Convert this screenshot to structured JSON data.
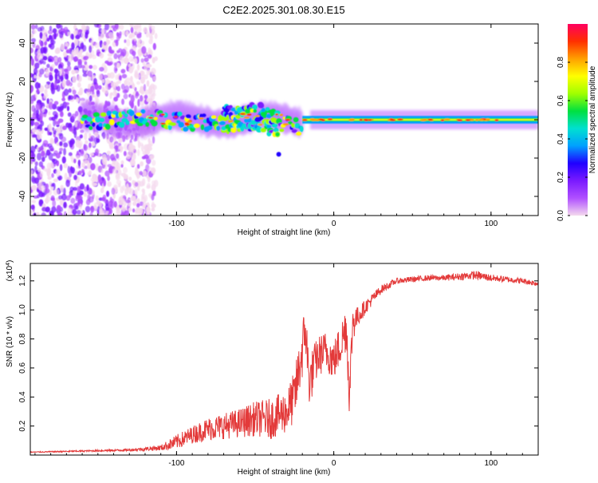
{
  "title": "C2E2.2025.301.08.30.E15",
  "chart_data": [
    {
      "type": "heatmap",
      "title": "C2E2.2025.301.08.30.E15",
      "xlabel": "Height of straight line (km)",
      "ylabel": "Frequency (Hz)",
      "xlim": [
        -193,
        130
      ],
      "ylim": [
        -50,
        50
      ],
      "xticks": [
        -100,
        0,
        100
      ],
      "xtick_labels": [
        "-100",
        "0",
        "100"
      ],
      "yticks": [
        -40,
        -20,
        0,
        20,
        40
      ],
      "ytick_labels": [
        "-40",
        "-20",
        "0",
        "20",
        "40"
      ],
      "colorbar": {
        "label": "Normalized spectral amplitude",
        "range": [
          0,
          1
        ],
        "ticks": [
          0.0,
          0.2,
          0.4,
          0.6,
          0.8
        ],
        "tick_labels": [
          "0.0",
          "0.2",
          "0.4",
          "0.6",
          "0.8"
        ],
        "colormap": [
          "#f4d9ee",
          "#b050ff",
          "#7a1aff",
          "#2000ff",
          "#00a0ff",
          "#00e0d0",
          "#00e040",
          "#a0ff00",
          "#ffff00",
          "#ffa000",
          "#ff3000",
          "#ff0060"
        ]
      },
      "segments": [
        {
          "x_range": [
            -193,
            -113
          ],
          "description": "broadband scattered noise, amplitude < 0.25"
        },
        {
          "x_range": [
            -160,
            -20
          ],
          "center_hz": 0,
          "spread_hz": 8,
          "peak_amplitude": 0.95
        },
        {
          "x_range": [
            -20,
            130
          ],
          "center_hz": 0,
          "spread_hz": 2,
          "peak_amplitude": 0.95
        }
      ]
    },
    {
      "type": "line",
      "xlabel": "Height of straight line (km)",
      "ylabel": "SNR (10 * v/v)",
      "scale_label": "(x10",
      "scale_exponent": "4",
      "xlim": [
        -193,
        130
      ],
      "ylim": [
        0,
        1.32
      ],
      "xticks": [
        -100,
        0,
        100
      ],
      "xtick_labels": [
        "-100",
        "0",
        "100"
      ],
      "yticks": [
        0.2,
        0.4,
        0.6,
        0.8,
        1.0,
        1.2
      ],
      "ytick_labels": [
        "0.2",
        "0.4",
        "0.6",
        "0.8",
        "1.0",
        "1.2"
      ],
      "color": "#e33a3a",
      "series": [
        {
          "name": "SNR",
          "x": [
            -193,
            -170,
            -150,
            -130,
            -110,
            -100,
            -90,
            -80,
            -70,
            -60,
            -50,
            -40,
            -30,
            -25,
            -20,
            -18,
            -16,
            -15,
            -13,
            -10,
            -5,
            0,
            5,
            8,
            10,
            12,
            15,
            20,
            25,
            30,
            40,
            50,
            60,
            70,
            80,
            90,
            100,
            110,
            120,
            130
          ],
          "values": [
            0.02,
            0.025,
            0.03,
            0.035,
            0.05,
            0.09,
            0.14,
            0.18,
            0.2,
            0.22,
            0.25,
            0.25,
            0.3,
            0.4,
            0.72,
            0.88,
            0.55,
            0.5,
            0.6,
            0.68,
            0.72,
            0.65,
            0.78,
            0.9,
            0.4,
            0.92,
            0.95,
            1.02,
            1.08,
            1.14,
            1.2,
            1.21,
            1.22,
            1.22,
            1.23,
            1.24,
            1.22,
            1.21,
            1.2,
            1.18
          ],
          "noise": [
            0.003,
            0.005,
            0.006,
            0.008,
            0.02,
            0.05,
            0.06,
            0.08,
            0.09,
            0.1,
            0.12,
            0.14,
            0.15,
            0.18,
            0.2,
            0.2,
            0.18,
            0.18,
            0.16,
            0.14,
            0.14,
            0.14,
            0.15,
            0.18,
            0.14,
            0.15,
            0.07,
            0.05,
            0.04,
            0.03,
            0.02,
            0.02,
            0.02,
            0.02,
            0.025,
            0.03,
            0.025,
            0.02,
            0.02,
            0.02
          ]
        }
      ]
    }
  ]
}
